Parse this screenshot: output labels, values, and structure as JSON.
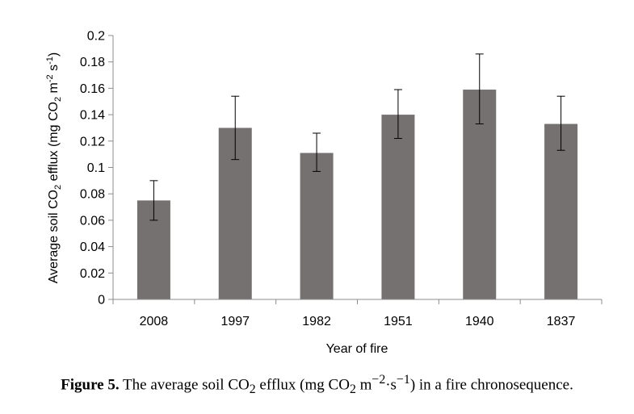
{
  "chart_data": {
    "type": "bar",
    "categories": [
      "2008",
      "1997",
      "1982",
      "1951",
      "1940",
      "1837"
    ],
    "values": [
      0.075,
      0.13,
      0.111,
      0.14,
      0.159,
      0.133
    ],
    "error_bars": [
      [
        0.06,
        0.09
      ],
      [
        0.106,
        0.154
      ],
      [
        0.097,
        0.126
      ],
      [
        0.122,
        0.159
      ],
      [
        0.133,
        0.186
      ],
      [
        0.113,
        0.154
      ]
    ],
    "xlabel": "Year of fire",
    "ylabel": {
      "pre": "Average soil CO",
      "sub1": "2",
      "mid": " efflux (mg CO",
      "sub2": "2",
      "mid2": " m",
      "sup1": "-2",
      "mid3": " s",
      "sup2": "-1",
      "post": ")"
    },
    "ylim": [
      0,
      0.2
    ],
    "yticks": [
      "0",
      "0.02",
      "0.04",
      "0.06",
      "0.08",
      "0.1",
      "0.12",
      "0.14",
      "0.16",
      "0.18",
      "0.2"
    ],
    "bar_color": "#767171",
    "grid": false,
    "legend": "none"
  },
  "caption": {
    "label": "Figure 5.",
    "text_pre": " The average soil CO",
    "sub": "2",
    "text_mid": " efflux (mg CO",
    "sub2": "2",
    "text_mid2": " m",
    "sup": "−2",
    "text_mid3": "·s",
    "sup2": "−1",
    "text_post": ") in a fire chronosequence."
  }
}
